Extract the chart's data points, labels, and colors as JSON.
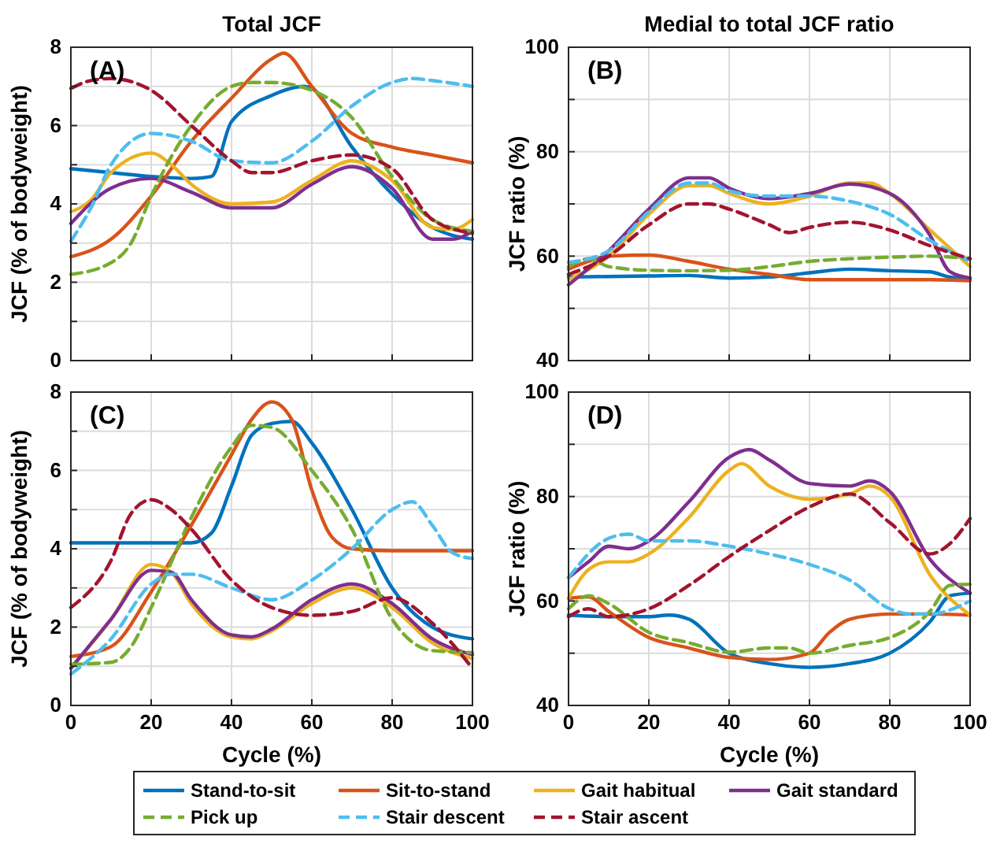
{
  "chart_data": [
    {
      "type": "line",
      "title": "Total JCF",
      "ylabel": "JCF (% of bodyweight)",
      "annotations": [
        "(A)"
      ],
      "xlim": [
        0,
        100
      ],
      "xticks": [
        0,
        20,
        40,
        60,
        80,
        100
      ],
      "ylim": [
        0,
        8
      ],
      "yticks": [
        0,
        {
          "value": 1,
          "label": null
        },
        2,
        {
          "value": 3,
          "label": null
        },
        4,
        {
          "value": 5,
          "label": null
        },
        6,
        {
          "value": 7,
          "label": null
        },
        8
      ],
      "grid": true,
      "tick_labels": "y",
      "series": [
        {
          "color": "#0072bd",
          "line_style": "solid",
          "x": [
            0,
            10,
            20,
            30,
            35,
            40,
            50,
            58,
            60,
            70,
            80,
            90,
            95,
            100
          ],
          "values": [
            4.9,
            4.8,
            4.7,
            4.65,
            4.7,
            6.1,
            6.77,
            7.0,
            6.95,
            5.45,
            4.25,
            3.4,
            3.2,
            3.1
          ]
        },
        {
          "color": "#d95319",
          "line_style": "solid",
          "x": [
            0,
            10,
            20,
            30,
            40,
            50,
            53,
            60,
            70,
            80,
            90,
            100
          ],
          "values": [
            2.65,
            3.1,
            4.2,
            5.6,
            6.7,
            7.7,
            7.85,
            7.0,
            5.8,
            5.45,
            5.25,
            5.05
          ]
        },
        {
          "color": "#edb120",
          "line_style": "solid",
          "x": [
            0,
            5,
            10,
            20,
            25,
            30,
            40,
            50,
            60,
            70,
            80,
            90,
            95,
            100
          ],
          "values": [
            3.8,
            4.1,
            4.8,
            5.3,
            5.0,
            4.5,
            4.0,
            4.05,
            4.6,
            5.1,
            4.6,
            3.4,
            3.35,
            3.6
          ]
        },
        {
          "color": "#7e2f8e",
          "line_style": "solid",
          "x": [
            0,
            10,
            20,
            30,
            40,
            50,
            60,
            70,
            80,
            90,
            95,
            100
          ],
          "values": [
            3.5,
            4.4,
            4.65,
            4.3,
            3.9,
            3.9,
            4.5,
            4.95,
            4.4,
            3.1,
            3.1,
            3.3
          ]
        },
        {
          "color": "#77ac30",
          "line_style": "dashed",
          "x": [
            0,
            10,
            15,
            20,
            30,
            40,
            45,
            50,
            60,
            70,
            80,
            90,
            100
          ],
          "values": [
            2.2,
            2.5,
            3.0,
            4.2,
            6.0,
            7.0,
            7.1,
            7.1,
            6.9,
            6.2,
            4.7,
            3.6,
            3.3
          ]
        },
        {
          "color": "#4dbeee",
          "line_style": "dashed",
          "x": [
            0,
            5,
            10,
            20,
            30,
            40,
            50,
            60,
            70,
            80,
            85,
            90,
            100
          ],
          "values": [
            3.05,
            3.9,
            5.0,
            5.8,
            5.6,
            5.1,
            5.05,
            5.6,
            6.5,
            7.1,
            7.2,
            7.15,
            7.0
          ]
        },
        {
          "color": "#a2142f",
          "line_style": "dashed",
          "x": [
            0,
            5,
            10,
            20,
            30,
            40,
            45,
            50,
            60,
            70,
            80,
            90,
            100
          ],
          "values": [
            6.95,
            7.15,
            7.2,
            6.9,
            6.0,
            5.1,
            4.8,
            4.8,
            5.1,
            5.25,
            4.9,
            3.6,
            3.25
          ]
        }
      ]
    },
    {
      "type": "line",
      "title": "Medial to total JCF ratio",
      "ylabel": "JCF ratio (%)",
      "annotations": [
        "(B)"
      ],
      "xlim": [
        0,
        100
      ],
      "xticks": [
        0,
        20,
        40,
        60,
        80,
        100
      ],
      "ylim": [
        40,
        100
      ],
      "yticks": [
        40,
        {
          "value": 50,
          "label": null
        },
        60,
        {
          "value": 70,
          "label": null
        },
        80,
        {
          "value": 90,
          "label": null
        },
        100
      ],
      "grid": true,
      "tick_labels": "y",
      "series": [
        {
          "color": "#0072bd",
          "line_style": "solid",
          "x": [
            0,
            20,
            30,
            40,
            50,
            60,
            70,
            80,
            90,
            95,
            100
          ],
          "values": [
            56,
            56.2,
            56.3,
            55.8,
            56,
            56.8,
            57.5,
            57.2,
            57,
            56,
            55.8
          ]
        },
        {
          "color": "#d95319",
          "line_style": "solid",
          "x": [
            0,
            5,
            10,
            20,
            30,
            40,
            50,
            60,
            70,
            80,
            90,
            100
          ],
          "values": [
            57.5,
            59,
            60,
            60.2,
            59,
            57.5,
            56.5,
            55.5,
            55.5,
            55.5,
            55.5,
            55.3
          ]
        },
        {
          "color": "#edb120",
          "line_style": "solid",
          "x": [
            0,
            10,
            20,
            30,
            35,
            40,
            50,
            60,
            70,
            75,
            80,
            90,
            100
          ],
          "values": [
            55.5,
            60,
            68,
            73.5,
            73.5,
            72,
            70,
            71.5,
            74,
            74,
            72,
            65,
            58
          ]
        },
        {
          "color": "#7e2f8e",
          "line_style": "solid",
          "x": [
            0,
            10,
            20,
            30,
            35,
            40,
            50,
            60,
            70,
            80,
            90,
            95,
            100
          ],
          "values": [
            54.5,
            61,
            69,
            75,
            75,
            73,
            71,
            72,
            73.8,
            72,
            64,
            57,
            55.8
          ]
        },
        {
          "color": "#77ac30",
          "line_style": "dashed",
          "x": [
            0,
            5,
            10,
            20,
            30,
            40,
            50,
            60,
            70,
            80,
            90,
            100
          ],
          "values": [
            58,
            59.5,
            58,
            57.3,
            57.2,
            57.3,
            58,
            59,
            59.5,
            59.8,
            60,
            59.5
          ]
        },
        {
          "color": "#4dbeee",
          "line_style": "dashed",
          "x": [
            0,
            10,
            20,
            30,
            35,
            40,
            50,
            60,
            70,
            80,
            90,
            100
          ],
          "values": [
            58.8,
            61,
            68.5,
            74,
            74,
            72.5,
            71.5,
            71.5,
            70.5,
            68,
            63,
            59
          ]
        },
        {
          "color": "#a2142f",
          "line_style": "dashed",
          "x": [
            0,
            10,
            20,
            30,
            35,
            40,
            50,
            55,
            60,
            70,
            80,
            90,
            100
          ],
          "values": [
            56.5,
            60,
            66,
            70,
            70,
            69,
            66,
            64.5,
            65.5,
            66.5,
            65,
            62,
            59.5
          ]
        }
      ]
    },
    {
      "type": "line",
      "xlabel": "Cycle (%)",
      "ylabel": "JCF (% of bodyweight)",
      "annotations": [
        "(C)"
      ],
      "xlim": [
        0,
        100
      ],
      "xticks": [
        0,
        20,
        40,
        60,
        80,
        100
      ],
      "ylim": [
        0,
        8
      ],
      "yticks": [
        0,
        {
          "value": 1,
          "label": null
        },
        2,
        {
          "value": 3,
          "label": null
        },
        4,
        {
          "value": 5,
          "label": null
        },
        6,
        {
          "value": 7,
          "label": null
        },
        8
      ],
      "grid": true,
      "legend": "bottom",
      "series": [
        {
          "name": "Stand-to-sit",
          "color": "#0072bd",
          "line_style": "solid",
          "x": [
            0,
            20,
            30,
            35,
            40,
            45,
            50,
            55,
            60,
            70,
            80,
            90,
            100
          ],
          "values": [
            4.15,
            4.15,
            4.15,
            4.4,
            5.6,
            6.9,
            7.2,
            7.25,
            6.7,
            5.0,
            3.0,
            2.0,
            1.7
          ]
        },
        {
          "name": "Sit-to-stand",
          "color": "#d95319",
          "line_style": "solid",
          "x": [
            0,
            10,
            20,
            30,
            40,
            45,
            50,
            55,
            60,
            65,
            70,
            80,
            90,
            100
          ],
          "values": [
            1.25,
            1.5,
            2.9,
            4.6,
            6.4,
            7.3,
            7.75,
            7.3,
            5.5,
            4.3,
            4.0,
            3.95,
            3.95,
            3.95
          ]
        },
        {
          "name": "Gait habitual",
          "color": "#edb120",
          "line_style": "solid",
          "x": [
            0,
            10,
            20,
            25,
            30,
            40,
            45,
            50,
            60,
            70,
            80,
            90,
            100
          ],
          "values": [
            0.95,
            2.2,
            3.6,
            3.4,
            2.6,
            1.75,
            1.7,
            1.9,
            2.6,
            3.0,
            2.5,
            1.6,
            1.2
          ]
        },
        {
          "name": "Gait standard",
          "color": "#7e2f8e",
          "line_style": "solid",
          "x": [
            0,
            10,
            20,
            25,
            30,
            40,
            45,
            50,
            60,
            70,
            80,
            90,
            100
          ],
          "values": [
            0.95,
            2.2,
            3.45,
            3.4,
            2.7,
            1.8,
            1.75,
            1.95,
            2.7,
            3.1,
            2.6,
            1.7,
            1.3
          ]
        },
        {
          "name": "Pick up",
          "color": "#77ac30",
          "line_style": "dashed",
          "x": [
            0,
            10,
            15,
            20,
            30,
            40,
            45,
            50,
            60,
            70,
            80,
            90,
            100
          ],
          "values": [
            1.05,
            1.1,
            1.5,
            2.5,
            4.8,
            6.6,
            7.15,
            7.1,
            6.0,
            4.5,
            2.2,
            1.4,
            1.35
          ]
        },
        {
          "name": "Stair descent",
          "color": "#4dbeee",
          "line_style": "dashed",
          "x": [
            0,
            10,
            20,
            25,
            30,
            40,
            50,
            60,
            70,
            80,
            85,
            90,
            95,
            100
          ],
          "values": [
            0.8,
            1.7,
            3.1,
            3.35,
            3.35,
            3.0,
            2.7,
            3.2,
            4.0,
            5.0,
            5.2,
            4.6,
            3.9,
            3.75
          ]
        },
        {
          "name": "Stair ascent",
          "color": "#a2142f",
          "line_style": "dashed",
          "x": [
            0,
            10,
            15,
            20,
            25,
            30,
            40,
            50,
            60,
            70,
            80,
            90,
            100
          ],
          "values": [
            2.5,
            3.7,
            4.9,
            5.25,
            5.0,
            4.5,
            3.2,
            2.5,
            2.3,
            2.4,
            2.75,
            2.1,
            0.95
          ]
        }
      ]
    },
    {
      "type": "line",
      "xlabel": "Cycle (%)",
      "ylabel": "JCF ratio (%)",
      "annotations": [
        "(D)"
      ],
      "xlim": [
        0,
        100
      ],
      "xticks": [
        0,
        20,
        40,
        60,
        80,
        100
      ],
      "ylim": [
        40,
        100
      ],
      "yticks": [
        40,
        {
          "value": 50,
          "label": null
        },
        60,
        {
          "value": 70,
          "label": null
        },
        80,
        {
          "value": 90,
          "label": null
        },
        100
      ],
      "grid": true,
      "series": [
        {
          "color": "#0072bd",
          "line_style": "solid",
          "x": [
            0,
            10,
            20,
            25,
            30,
            40,
            50,
            60,
            70,
            80,
            90,
            95,
            100
          ],
          "values": [
            57.3,
            57,
            57,
            57.3,
            56.5,
            50,
            48,
            47.3,
            48,
            50,
            56,
            61,
            61.5
          ]
        },
        {
          "color": "#d95319",
          "line_style": "solid",
          "x": [
            0,
            5,
            10,
            20,
            30,
            40,
            50,
            60,
            65,
            70,
            80,
            90,
            100
          ],
          "values": [
            60.5,
            60.8,
            58,
            53,
            51,
            49.2,
            48.8,
            50,
            54,
            56.5,
            57.5,
            57.5,
            57.3
          ]
        },
        {
          "color": "#edb120",
          "line_style": "solid",
          "x": [
            0,
            5,
            10,
            15,
            20,
            30,
            40,
            43,
            50,
            60,
            70,
            75,
            80,
            90,
            100
          ],
          "values": [
            60.5,
            66,
            67.5,
            67.5,
            69,
            76,
            85,
            86.3,
            82,
            79.5,
            80.5,
            82,
            80,
            65,
            57.3
          ]
        },
        {
          "color": "#7e2f8e",
          "line_style": "solid",
          "x": [
            0,
            5,
            10,
            15,
            20,
            30,
            40,
            45,
            50,
            60,
            70,
            75,
            80,
            90,
            100
          ],
          "values": [
            64.5,
            67.5,
            70.5,
            70,
            71.5,
            79,
            87.5,
            89,
            87,
            82.5,
            82,
            83,
            81,
            68,
            61.5
          ]
        },
        {
          "color": "#77ac30",
          "line_style": "dashed",
          "x": [
            0,
            5,
            10,
            20,
            30,
            40,
            50,
            55,
            60,
            70,
            80,
            90,
            95,
            100
          ],
          "values": [
            58.5,
            61,
            59.5,
            54,
            52,
            50.2,
            51,
            51,
            50,
            51.5,
            53,
            58,
            63,
            63.2
          ]
        },
        {
          "color": "#4dbeee",
          "line_style": "dashed",
          "x": [
            0,
            10,
            15,
            20,
            30,
            40,
            50,
            60,
            70,
            80,
            85,
            90,
            100
          ],
          "values": [
            64.5,
            72,
            72.8,
            71.5,
            71.5,
            70.5,
            69,
            67,
            64,
            58.5,
            57.5,
            57.5,
            60
          ]
        },
        {
          "color": "#a2142f",
          "line_style": "dashed",
          "x": [
            0,
            5,
            10,
            20,
            30,
            40,
            50,
            60,
            70,
            80,
            90,
            95,
            100
          ],
          "values": [
            57,
            58.5,
            57,
            58.5,
            63,
            68.5,
            73.5,
            78,
            80.5,
            75,
            69,
            71,
            75.8
          ]
        }
      ]
    }
  ]
}
